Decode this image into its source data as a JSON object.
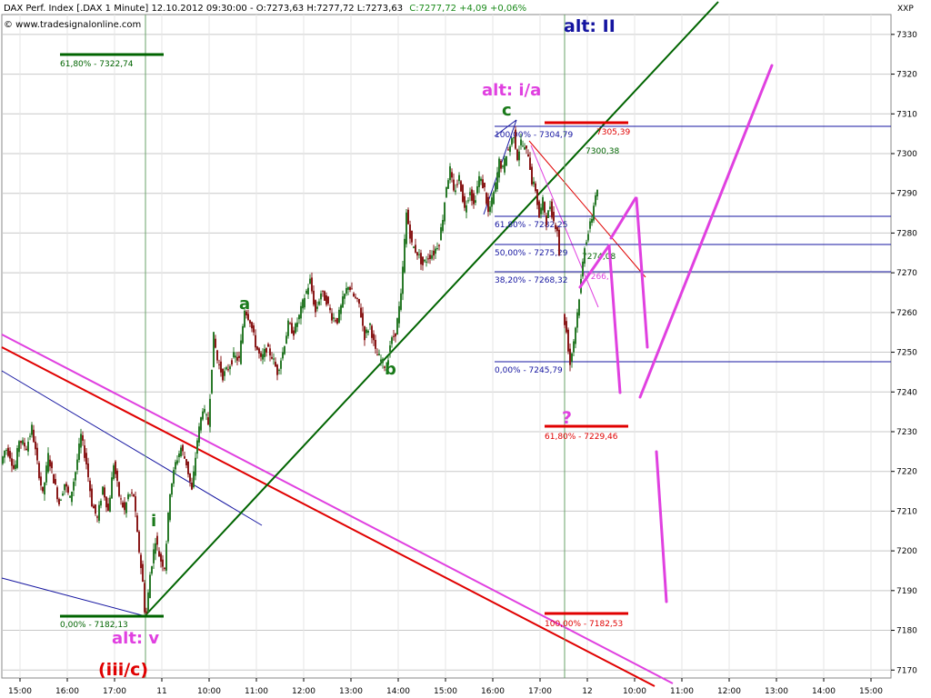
{
  "header": {
    "title": "DAX Perf. Index [.DAX  1 Minute] 12.10.2012 09:30:00 - O:7273,63 H:7277,72 L:7273,63",
    "close_change": "C:7277,72 +4,09 +0,06%",
    "website": "© www.tradesignalonline.com",
    "axis_unit": "XXP"
  },
  "colors": {
    "candle_up": "#2a7a2a",
    "candle_down": "#8a1a1a",
    "dark_green": "#006400",
    "red": "#e00000",
    "magenta": "#e040e0",
    "blue": "#1414a0",
    "gridline": "#c8c8c8"
  },
  "chart_data": {
    "type": "candlestick",
    "ylim": [
      7168,
      7335
    ],
    "y_ticks": [
      7170,
      7180,
      7190,
      7200,
      7210,
      7220,
      7230,
      7240,
      7250,
      7260,
      7270,
      7280,
      7290,
      7300,
      7310,
      7320,
      7330
    ],
    "x_tick_labels": [
      "15:00",
      "16:00",
      "17:00",
      "11",
      "10:00",
      "11:00",
      "12:00",
      "13:00",
      "14:00",
      "15:00",
      "16:00",
      "17:00",
      "12",
      "10:00",
      "11:00",
      "12:00",
      "13:00",
      "14:00",
      "15:00"
    ],
    "price_anchors": [
      [
        0,
        7222
      ],
      [
        5,
        7226
      ],
      [
        10,
        7224
      ],
      [
        15,
        7220
      ],
      [
        20,
        7228
      ],
      [
        28,
        7226
      ],
      [
        34,
        7231
      ],
      [
        40,
        7222
      ],
      [
        46,
        7214
      ],
      [
        52,
        7224
      ],
      [
        58,
        7218
      ],
      [
        64,
        7212
      ],
      [
        70,
        7217
      ],
      [
        76,
        7213
      ],
      [
        82,
        7220
      ],
      [
        88,
        7229
      ],
      [
        94,
        7222
      ],
      [
        100,
        7212
      ],
      [
        106,
        7208
      ],
      [
        112,
        7216
      ],
      [
        118,
        7210
      ],
      [
        124,
        7222
      ],
      [
        130,
        7214
      ],
      [
        136,
        7210
      ],
      [
        140,
        7214
      ],
      [
        146,
        7214
      ],
      [
        150,
        7204
      ],
      [
        156,
        7192
      ],
      [
        159,
        7182
      ],
      [
        164,
        7194
      ],
      [
        170,
        7203
      ],
      [
        175,
        7198
      ],
      [
        180,
        7196
      ],
      [
        186,
        7215
      ],
      [
        192,
        7222
      ],
      [
        198,
        7226
      ],
      [
        204,
        7222
      ],
      [
        210,
        7215
      ],
      [
        216,
        7228
      ],
      [
        222,
        7236
      ],
      [
        228,
        7232
      ],
      [
        234,
        7254
      ],
      [
        238,
        7248
      ],
      [
        244,
        7244
      ],
      [
        250,
        7246
      ],
      [
        256,
        7249
      ],
      [
        262,
        7248
      ],
      [
        268,
        7261
      ],
      [
        274,
        7258
      ],
      [
        280,
        7252
      ],
      [
        286,
        7248
      ],
      [
        292,
        7251
      ],
      [
        298,
        7249
      ],
      [
        304,
        7245
      ],
      [
        310,
        7250
      ],
      [
        316,
        7257
      ],
      [
        322,
        7255
      ],
      [
        328,
        7259
      ],
      [
        334,
        7264
      ],
      [
        340,
        7268
      ],
      [
        346,
        7260
      ],
      [
        352,
        7265
      ],
      [
        358,
        7263
      ],
      [
        364,
        7259
      ],
      [
        370,
        7258
      ],
      [
        376,
        7263
      ],
      [
        382,
        7267
      ],
      [
        388,
        7264
      ],
      [
        394,
        7262
      ],
      [
        400,
        7254
      ],
      [
        406,
        7257
      ],
      [
        412,
        7250
      ],
      [
        418,
        7248
      ],
      [
        424,
        7246
      ],
      [
        428,
        7252
      ],
      [
        434,
        7255
      ],
      [
        440,
        7264
      ],
      [
        446,
        7285
      ],
      [
        452,
        7277
      ],
      [
        458,
        7275
      ],
      [
        464,
        7272
      ],
      [
        470,
        7274
      ],
      [
        476,
        7275
      ],
      [
        482,
        7278
      ],
      [
        486,
        7284
      ],
      [
        490,
        7292
      ],
      [
        494,
        7296
      ],
      [
        498,
        7290
      ],
      [
        504,
        7294
      ],
      [
        510,
        7286
      ],
      [
        516,
        7291
      ],
      [
        520,
        7287
      ],
      [
        526,
        7294
      ],
      [
        532,
        7291
      ],
      [
        536,
        7285
      ],
      [
        540,
        7288
      ],
      [
        544,
        7292
      ],
      [
        548,
        7298
      ],
      [
        552,
        7296
      ],
      [
        556,
        7300
      ],
      [
        560,
        7302
      ],
      [
        564,
        7305
      ],
      [
        568,
        7299
      ],
      [
        572,
        7303
      ],
      [
        576,
        7301
      ],
      [
        580,
        7300
      ],
      [
        584,
        7293
      ],
      [
        588,
        7291
      ],
      [
        592,
        7284
      ],
      [
        596,
        7288
      ],
      [
        600,
        7283
      ],
      [
        604,
        7287
      ],
      [
        608,
        7283
      ],
      [
        612,
        7281
      ],
      [
        618,
        7260
      ],
      [
        622,
        7255
      ],
      [
        626,
        7247
      ],
      [
        630,
        7253
      ],
      [
        634,
        7260
      ],
      [
        638,
        7268
      ],
      [
        642,
        7277
      ],
      [
        646,
        7280
      ],
      [
        650,
        7284
      ],
      [
        654,
        7290
      ]
    ],
    "wave_labels": [
      {
        "text": "alt: II",
        "color": "#1414a0",
        "price": 7327,
        "x_time": "12 10:00"
      },
      {
        "text": "alt: i/a",
        "color": "#e040e0",
        "price": 7313,
        "x_time": "16:30"
      },
      {
        "text": "c",
        "color": "#1a7a1a",
        "price": 7305,
        "x_time": "16:30"
      },
      {
        "text": "a",
        "color": "#1a7a1a",
        "price": 7261,
        "x_time": "11:00"
      },
      {
        "text": "b",
        "color": "#1a7a1a",
        "price": 7243,
        "x_time": "14:00"
      },
      {
        "text": "i",
        "color": "#1a7a1a",
        "price": 7204,
        "x_time": "11 09:15"
      },
      {
        "text": "alt: v",
        "color": "#e040e0",
        "price": 7175,
        "x_time": "11 09:00"
      },
      {
        "text": "(iii/c)",
        "color": "#e00000",
        "price": 7168,
        "x_time": "11 09:00"
      },
      {
        "text": "?",
        "color": "#e040e0",
        "price": 7232,
        "x_time": "12 09:30"
      }
    ],
    "fib_levels": [
      {
        "label": "61,80% - 7322,74",
        "price": 7322.74,
        "color": "#006400"
      },
      {
        "label": "0,00% - 7182,13",
        "price": 7182.13,
        "color": "#006400"
      },
      {
        "label": "100,00% - 7304,79",
        "price": 7304.79,
        "color": "#1414a0"
      },
      {
        "label": "61,80% - 7282,25",
        "price": 7282.25,
        "color": "#1414a0"
      },
      {
        "label": "50,00% - 7275,29",
        "price": 7275.29,
        "color": "#1414a0"
      },
      {
        "label": "38,20% - 7268,32",
        "price": 7268.32,
        "color": "#1414a0"
      },
      {
        "label": "0,00% - 7245,79",
        "price": 7245.79,
        "color": "#1414a0"
      },
      {
        "label": "7305,39",
        "price": 7305.39,
        "color": "#e00000"
      },
      {
        "label": "61,80% - 7229,46",
        "price": 7229.46,
        "color": "#e00000"
      },
      {
        "label": "100,00% - 7182,53",
        "price": 7182.53,
        "color": "#e00000"
      }
    ],
    "value_labels": [
      {
        "text": "7300,38",
        "color": "#006400"
      },
      {
        "text": "7274,08",
        "color": "#006400"
      },
      {
        "text": "7266,",
        "color": "#e040e0"
      }
    ]
  }
}
